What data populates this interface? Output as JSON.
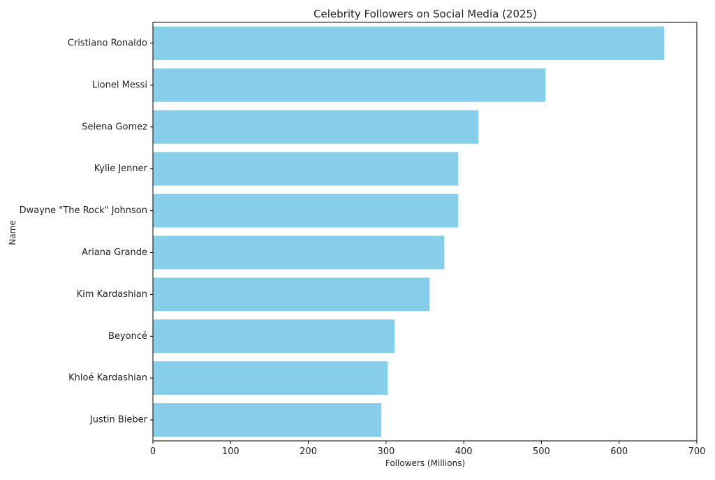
{
  "chart_data": {
    "type": "bar",
    "orientation": "horizontal",
    "title": "Celebrity Followers on Social Media (2025)",
    "xlabel": "Followers (Millions)",
    "ylabel": "Name",
    "categories": [
      "Cristiano Ronaldo",
      "Lionel Messi",
      "Selena Gomez",
      "Kylie Jenner",
      "Dwayne \"The Rock\" Johnson",
      "Ariana Grande",
      "Kim Kardashian",
      "Beyoncé",
      "Khloé Kardashian",
      "Justin Bieber"
    ],
    "values": [
      658,
      505,
      419,
      393,
      393,
      375,
      356,
      311,
      302,
      294
    ],
    "xlim": [
      0,
      700
    ],
    "xticks": [
      0,
      100,
      200,
      300,
      400,
      500,
      600,
      700
    ],
    "grid": false,
    "colors": {
      "bar": "#87ceeb",
      "axis": "#000000",
      "text": "#222222"
    }
  }
}
